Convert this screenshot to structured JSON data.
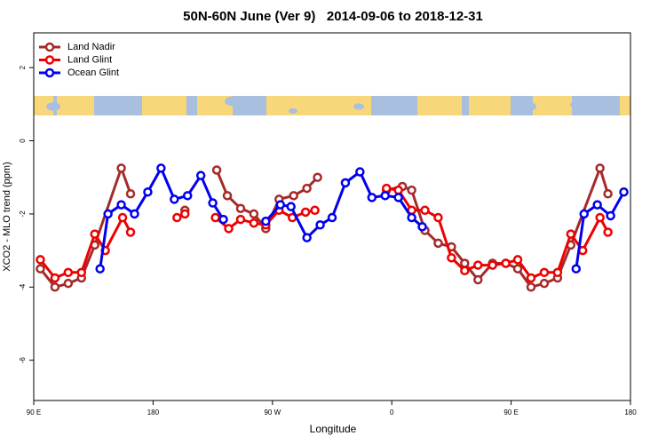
{
  "chart_data": {
    "type": "line",
    "title": "50N-60N June (Ver 9)   2014-09-06 to 2018-12-31",
    "x_label": "Longitude",
    "y_label": "XCO2 - MLO trend (ppm)",
    "xlim": [
      90,
      540
    ],
    "ylim": [
      -7.1,
      2.95
    ],
    "xticks": [
      {
        "value": 90,
        "label": "90 E"
      },
      180,
      {
        "value": 270,
        "label": "90 W"
      },
      {
        "value": 360,
        "label": "0"
      },
      {
        "value": 450,
        "label": "90 E"
      },
      {
        "value": 540,
        "label": "180"
      }
    ],
    "yticks": [
      -6,
      -4,
      -2,
      0,
      2
    ],
    "legend": "top-left",
    "series": [
      {
        "name": "Land Nadir",
        "color": "#a52a2a",
        "x": [
          95,
          106,
          116,
          126,
          136,
          156,
          163,
          null,
          204,
          null,
          228,
          236,
          246,
          256,
          265,
          275,
          286,
          296,
          304,
          null,
          356,
          368,
          375,
          385,
          395,
          405,
          415,
          425,
          436,
          446,
          455,
          465,
          475,
          485,
          495,
          517,
          523
        ],
        "values": [
          -3.5,
          -4.0,
          -3.9,
          -3.75,
          -2.85,
          -0.75,
          -1.45,
          null,
          -1.9,
          null,
          -0.8,
          -1.5,
          -1.85,
          -2.0,
          -2.4,
          -1.6,
          -1.5,
          -1.3,
          -1.0,
          null,
          -1.35,
          -1.25,
          -1.35,
          -2.45,
          -2.8,
          -2.9,
          -3.35,
          -3.8,
          -3.35,
          -3.35,
          -3.5,
          -4.0,
          -3.9,
          -3.75,
          -2.85,
          -0.75,
          -1.45
        ]
      },
      {
        "name": "Land Glint",
        "color": "#ee0000",
        "x": [
          95,
          106,
          116,
          126,
          136,
          144,
          157,
          163,
          null,
          198,
          204,
          null,
          227,
          237,
          246,
          256,
          265,
          275,
          285,
          295,
          302,
          null,
          356,
          365,
          375,
          385,
          395,
          405,
          415,
          425,
          436,
          446,
          455,
          465,
          475,
          485,
          495,
          504,
          517,
          523
        ],
        "values": [
          -3.25,
          -3.75,
          -3.6,
          -3.6,
          -2.55,
          -3.0,
          -2.1,
          -2.5,
          null,
          -2.1,
          -2.0,
          null,
          -2.1,
          -2.4,
          -2.15,
          -2.25,
          -2.3,
          -1.9,
          -2.1,
          -1.95,
          -1.9,
          null,
          -1.3,
          -1.35,
          -1.9,
          -1.9,
          -2.1,
          -3.2,
          -3.55,
          -3.4,
          -3.4,
          -3.35,
          -3.25,
          -3.75,
          -3.6,
          -3.6,
          -2.55,
          -3.0,
          -2.1,
          -2.5
        ]
      },
      {
        "name": "Ocean Glint",
        "color": "#0000ee",
        "x": [
          140,
          146,
          156,
          166,
          176,
          186,
          196,
          206,
          216,
          225,
          233,
          null,
          265,
          276,
          284,
          296,
          306,
          315,
          325,
          336,
          345,
          355,
          365,
          375,
          383,
          null,
          499,
          505,
          515,
          525,
          535
        ],
        "values": [
          -3.5,
          -2.0,
          -1.75,
          -2.0,
          -1.4,
          -0.75,
          -1.6,
          -1.5,
          -0.95,
          -1.7,
          -2.15,
          null,
          -2.2,
          -1.75,
          -1.8,
          -2.65,
          -2.3,
          -2.1,
          -1.15,
          -0.85,
          -1.55,
          -1.5,
          -1.55,
          -2.1,
          -2.35,
          null,
          -3.5,
          -2.0,
          -1.75,
          -2.05,
          -1.4
        ]
      }
    ]
  }
}
